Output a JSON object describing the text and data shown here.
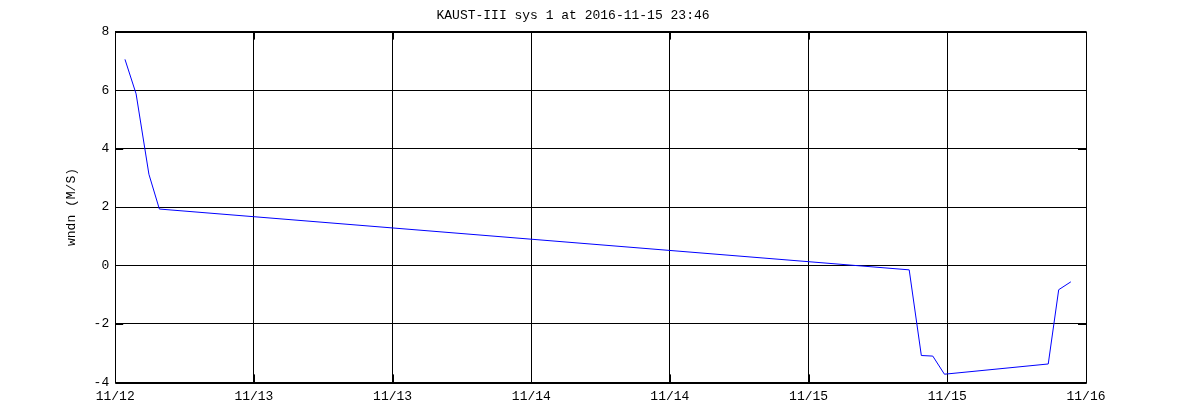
{
  "chart_data": {
    "type": "line",
    "title": "KAUST-III sys 1 at 2016-11-15 23:46",
    "ylabel": "wndn (M/S)",
    "x": [
      "2016-11-12T00:58",
      "2016-11-12T02:04",
      "2016-11-12T03:20",
      "2016-11-12T04:22",
      "2016-11-15T06:31",
      "2016-11-15T07:43",
      "2016-11-15T08:51",
      "2016-11-15T10:00",
      "2016-11-15T20:16",
      "2016-11-15T21:18",
      "2016-11-15T22:30"
    ],
    "series": [
      {
        "color": "#0000ff",
        "values": [
          7.05,
          5.87,
          3.12,
          1.93,
          -0.15,
          -3.08,
          -3.1,
          -3.72,
          -3.37,
          -0.83,
          -0.56
        ]
      }
    ],
    "xlim": [
      "2016-11-12T00:00",
      "2016-11-16T00:00"
    ],
    "xticks": [
      {
        "value": "2016-11-12T00:00",
        "label": "11/12"
      },
      {
        "value": "2016-11-12T13:43",
        "label": "11/13"
      },
      {
        "value": "2016-11-13T03:26",
        "label": "11/13"
      },
      {
        "value": "2016-11-13T17:09",
        "label": "11/14"
      },
      {
        "value": "2016-11-14T06:51",
        "label": "11/14"
      },
      {
        "value": "2016-11-14T20:34",
        "label": "11/15"
      },
      {
        "value": "2016-11-15T10:17",
        "label": "11/15"
      },
      {
        "value": "2016-11-16T00:00",
        "label": "11/16"
      }
    ],
    "ylim": [
      -4,
      8
    ],
    "yticks": [
      -4,
      -2,
      0,
      2,
      4,
      6,
      8
    ],
    "grid": true,
    "legend": false,
    "marker": "none",
    "line_style": "solid"
  }
}
